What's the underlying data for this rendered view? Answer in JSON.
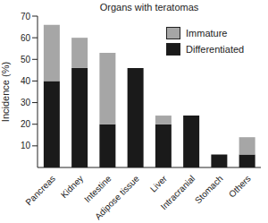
{
  "chart_data": {
    "type": "bar",
    "title": "Organs with teratomas",
    "y_label": "Incidence (%)",
    "categories": [
      "Pancreas",
      "Kidney",
      "Intestine",
      "Adipose tissue",
      "Liver",
      "Intracranial",
      "Stomach",
      "Others"
    ],
    "series": [
      {
        "name": "Differentiated",
        "color": "#1a1a1a",
        "values": [
          40,
          46,
          20,
          46,
          20,
          24,
          6,
          6
        ]
      },
      {
        "name": "Immature",
        "color": "#a6a6a6",
        "values": [
          26,
          14,
          33,
          0,
          4,
          0,
          0,
          8
        ]
      }
    ],
    "stacked": true,
    "ylim": [
      0,
      70
    ],
    "yticks": [
      10,
      20,
      30,
      40,
      50,
      60,
      70
    ],
    "grid": false,
    "legend": "upper right"
  }
}
